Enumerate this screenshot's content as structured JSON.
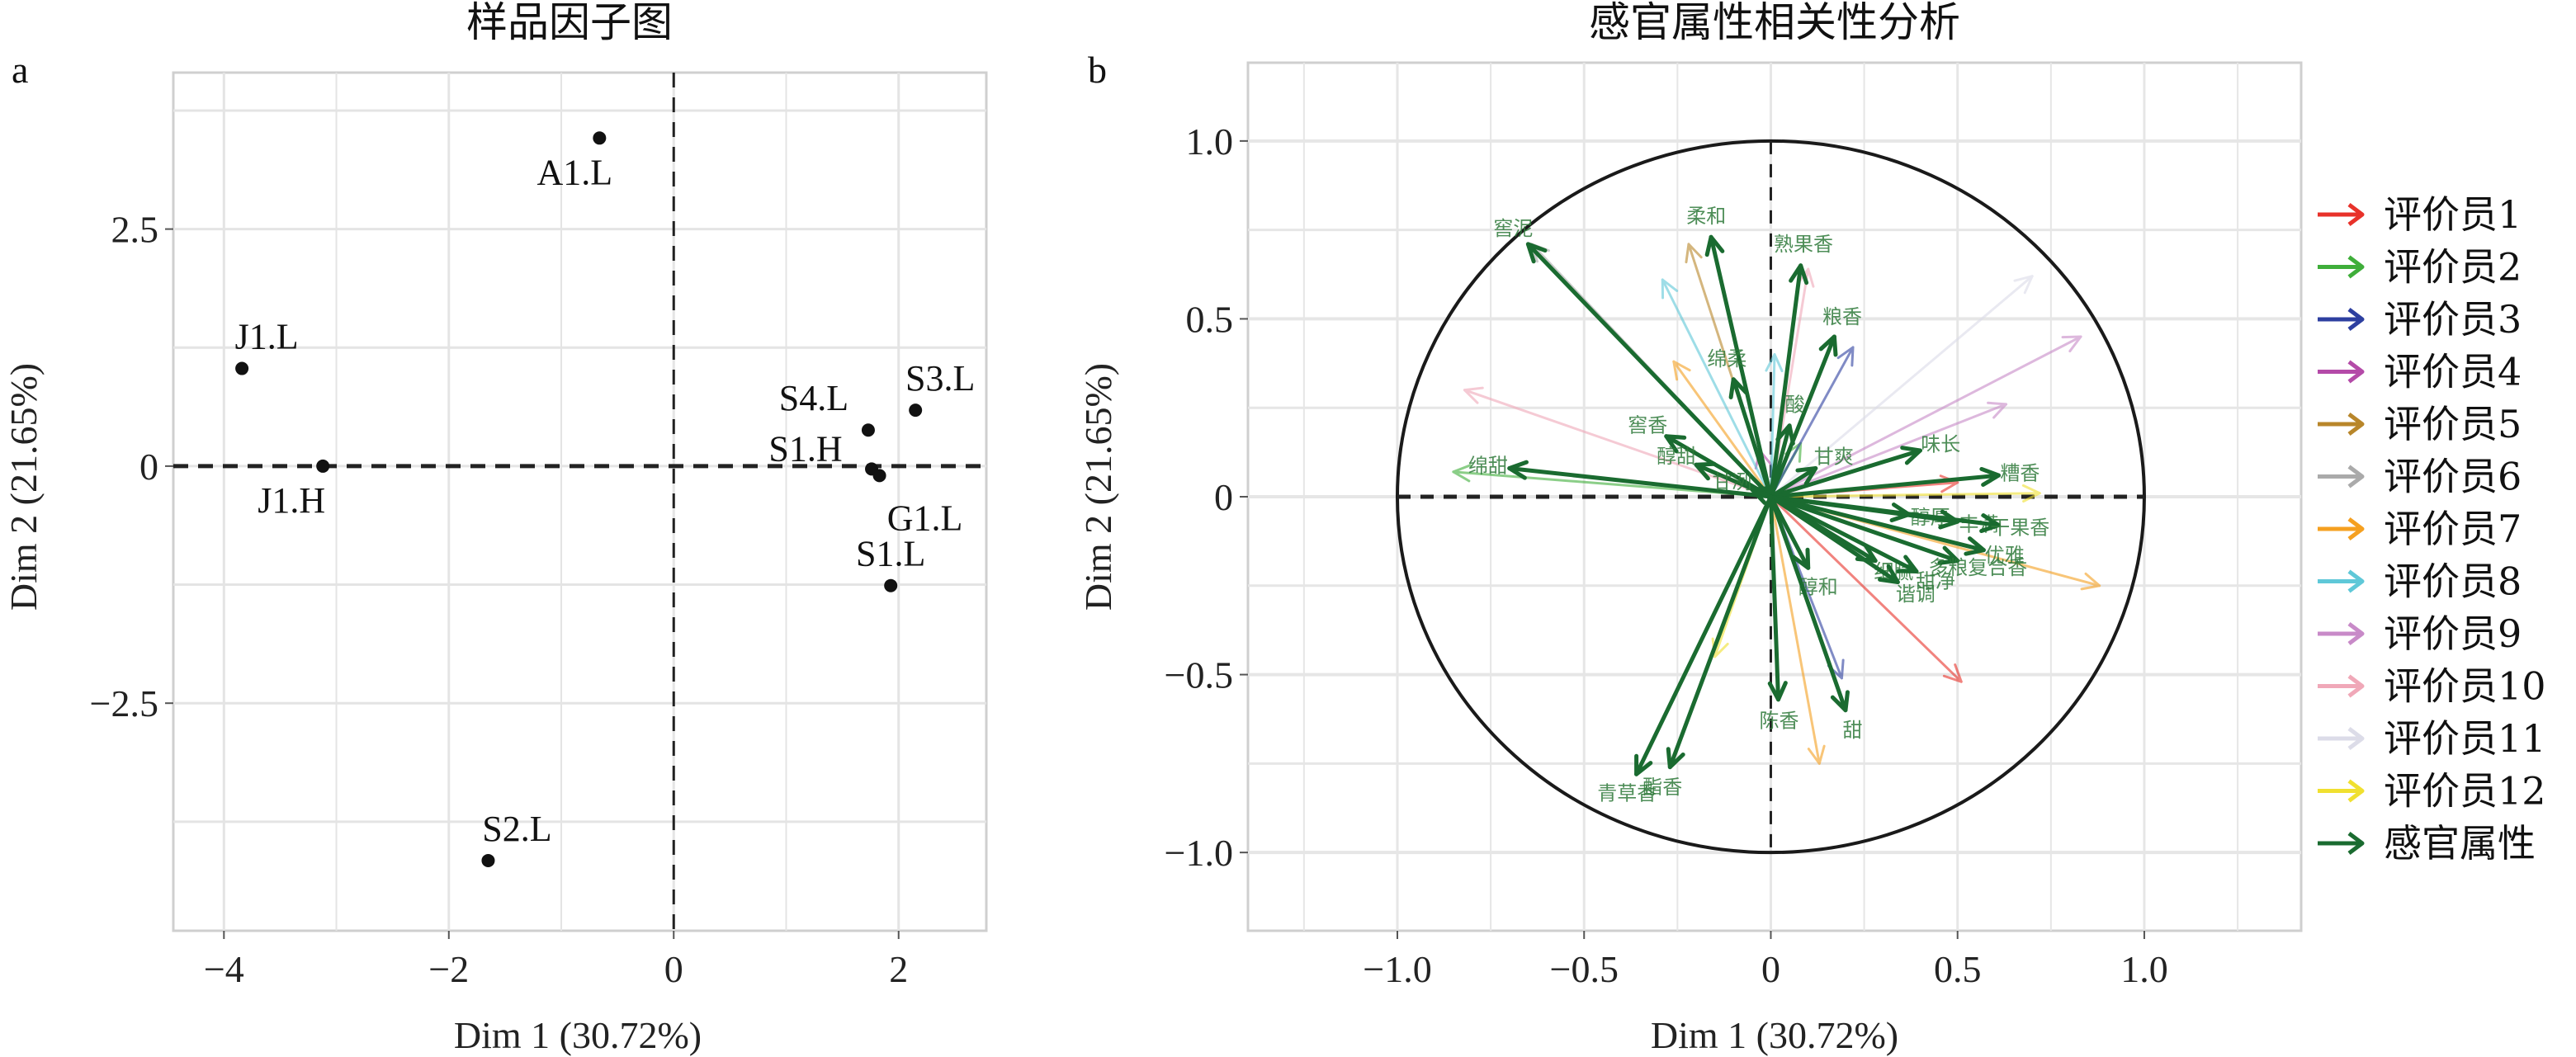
{
  "figure": {
    "panel_a_tag": "a",
    "panel_b_tag": "b"
  },
  "chart_data": [
    {
      "type": "scatter",
      "title": "样品因子图",
      "xlabel": "Dim 1 (30.72%)",
      "ylabel": "Dim 2 (21.65%)",
      "xlim": [
        -4.45,
        2.78
      ],
      "ylim": [
        -4.9,
        4.15
      ],
      "xticks": [
        -4,
        -2,
        0,
        2
      ],
      "xtick_labels": [
        "−4",
        "−2",
        "0",
        "2"
      ],
      "yticks": [
        -2.5,
        0,
        2.5
      ],
      "ytick_labels": [
        "−2.5",
        "0",
        "2.5"
      ],
      "grid": true,
      "reference_lines": {
        "x": 0,
        "y": 0,
        "style": "dashed"
      },
      "points": [
        {
          "label": "A1.L",
          "x": -0.66,
          "y": 3.46,
          "label_pos": "below"
        },
        {
          "label": "J1.L",
          "x": -3.84,
          "y": 1.03,
          "label_pos": "above"
        },
        {
          "label": "J1.H",
          "x": -3.12,
          "y": 0.0,
          "label_pos": "below"
        },
        {
          "label": "S4.L",
          "x": 1.73,
          "y": 0.38,
          "label_pos": "above-left"
        },
        {
          "label": "S3.L",
          "x": 2.15,
          "y": 0.59,
          "label_pos": "above"
        },
        {
          "label": "S1.H",
          "x": 1.76,
          "y": -0.03,
          "label_pos": "left"
        },
        {
          "label": "G1.L",
          "x": 1.83,
          "y": -0.1,
          "label_pos": "below"
        },
        {
          "label": "S1.L",
          "x": 1.93,
          "y": -1.26,
          "label_pos": "above"
        },
        {
          "label": "S2.L",
          "x": -1.65,
          "y": -4.16,
          "label_pos": "above"
        }
      ]
    },
    {
      "type": "vector",
      "title": "感官属性相关性分析",
      "xlabel": "Dim 1 (30.72%)",
      "ylabel": "Dim 2 (21.65%)",
      "xlim": [
        -1.4,
        1.42
      ],
      "ylim": [
        -1.22,
        1.22
      ],
      "xticks": [
        -1.0,
        -0.5,
        0,
        0.5,
        1.0
      ],
      "xtick_labels": [
        "−1.0",
        "−0.5",
        "0",
        "0.5",
        "1.0"
      ],
      "yticks": [
        -1.0,
        -0.5,
        0,
        0.5,
        1.0
      ],
      "ytick_labels": [
        "−1.0",
        "−0.5",
        "0",
        "0.5",
        "1.0"
      ],
      "grid": true,
      "unit_circle": true,
      "reference_lines": {
        "x": 0,
        "y": 0,
        "style": "dashed"
      },
      "legend": {
        "placement": "right",
        "entries": [
          {
            "name": "评价员1",
            "color": "#e8322a"
          },
          {
            "name": "评价员2",
            "color": "#3fae3a"
          },
          {
            "name": "评价员3",
            "color": "#2d3fa0"
          },
          {
            "name": "评价员4",
            "color": "#b44aa8"
          },
          {
            "name": "评价员5",
            "color": "#b8862a"
          },
          {
            "name": "评价员6",
            "color": "#aaaaaa"
          },
          {
            "name": "评价员7",
            "color": "#f5a020"
          },
          {
            "name": "评价员8",
            "color": "#5fc8d8"
          },
          {
            "name": "评价员9",
            "color": "#c88ac8"
          },
          {
            "name": "评价员10",
            "color": "#f0a8b8"
          },
          {
            "name": "评价员11",
            "color": "#dcdce8"
          },
          {
            "name": "评价员12",
            "color": "#f0e030"
          },
          {
            "name": "感官属性",
            "color": "#1a6b30"
          }
        ]
      },
      "attribute_vectors": [
        {
          "label": "窖泥",
          "x": -0.65,
          "y": 0.71
        },
        {
          "label": "柔和",
          "x": -0.16,
          "y": 0.73
        },
        {
          "label": "熟果香",
          "x": 0.08,
          "y": 0.65
        },
        {
          "label": "粮香",
          "x": 0.17,
          "y": 0.45
        },
        {
          "label": "绵柔",
          "x": -0.1,
          "y": 0.33
        },
        {
          "label": "窖香",
          "x": -0.28,
          "y": 0.17
        },
        {
          "label": "醇甜",
          "x": -0.2,
          "y": 0.09
        },
        {
          "label": "酸",
          "x": 0.05,
          "y": 0.2
        },
        {
          "label": "绵甜",
          "x": -0.7,
          "y": 0.08
        },
        {
          "label": "味长",
          "x": 0.4,
          "y": 0.13
        },
        {
          "label": "甘爽",
          "x": 0.12,
          "y": 0.08
        },
        {
          "label": "糟香",
          "x": 0.61,
          "y": 0.06
        },
        {
          "label": "甘冽",
          "x": -0.05,
          "y": 0.02
        },
        {
          "label": "醇厚",
          "x": 0.37,
          "y": -0.05
        },
        {
          "label": "丰满",
          "x": 0.5,
          "y": -0.07
        },
        {
          "label": "干果香",
          "x": 0.61,
          "y": -0.08
        },
        {
          "label": "优雅",
          "x": 0.57,
          "y": -0.15
        },
        {
          "label": "细腻",
          "x": 0.28,
          "y": -0.18
        },
        {
          "label": "甜净",
          "x": 0.39,
          "y": -0.21
        },
        {
          "label": "多粮复合香",
          "x": 0.5,
          "y": -0.18
        },
        {
          "label": "谐调",
          "x": 0.34,
          "y": -0.24
        },
        {
          "label": "醇和",
          "x": 0.1,
          "y": -0.2
        },
        {
          "label": "陈香",
          "x": 0.02,
          "y": -0.57
        },
        {
          "label": "甜",
          "x": 0.2,
          "y": -0.6
        },
        {
          "label": "青草香",
          "x": -0.36,
          "y": -0.78
        },
        {
          "label": "酯香",
          "x": -0.27,
          "y": -0.76
        }
      ],
      "rater_vectors": [
        {
          "rater": "评价员1",
          "x": 0.51,
          "y": -0.52
        },
        {
          "rater": "评价员1",
          "x": 0.5,
          "y": 0.04
        },
        {
          "rater": "评价员2",
          "x": -0.85,
          "y": 0.07
        },
        {
          "rater": "评价员2",
          "x": 0.08,
          "y": 0.15
        },
        {
          "rater": "评价员3",
          "x": 0.19,
          "y": -0.51
        },
        {
          "rater": "评价员3",
          "x": 0.22,
          "y": 0.42
        },
        {
          "rater": "评价员4",
          "x": -0.03,
          "y": 0.13
        },
        {
          "rater": "评价员5",
          "x": -0.22,
          "y": 0.71
        },
        {
          "rater": "评价员6",
          "x": -0.64,
          "y": 0.71
        },
        {
          "rater": "评价员7",
          "x": 0.13,
          "y": -0.75
        },
        {
          "rater": "评价员7",
          "x": -0.26,
          "y": 0.38
        },
        {
          "rater": "评价员7",
          "x": 0.88,
          "y": -0.25
        },
        {
          "rater": "评价员8",
          "x": -0.29,
          "y": 0.61
        },
        {
          "rater": "评价员8",
          "x": 0.01,
          "y": 0.4
        },
        {
          "rater": "评价员9",
          "x": 0.83,
          "y": 0.45
        },
        {
          "rater": "评价员9",
          "x": 0.63,
          "y": 0.26
        },
        {
          "rater": "评价员10",
          "x": -0.82,
          "y": 0.3
        },
        {
          "rater": "评价员10",
          "x": 0.1,
          "y": 0.64
        },
        {
          "rater": "评价员11",
          "x": 0.7,
          "y": 0.62
        },
        {
          "rater": "评价员12",
          "x": 0.72,
          "y": 0.01
        },
        {
          "rater": "评价员12",
          "x": -0.15,
          "y": -0.45
        }
      ]
    }
  ]
}
